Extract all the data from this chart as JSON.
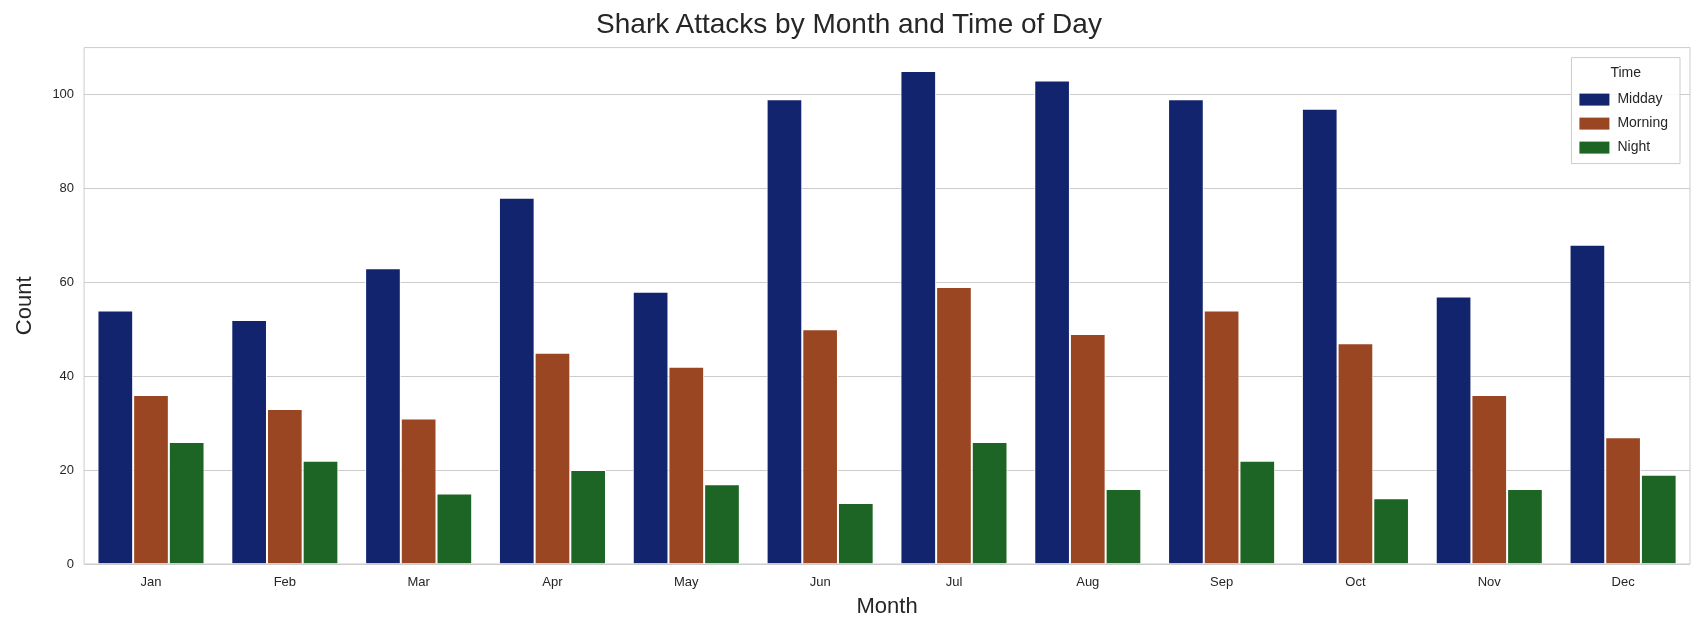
{
  "chart_data": {
    "type": "bar",
    "title": "Shark Attacks by Month and Time of Day",
    "xlabel": "Month",
    "ylabel": "Count",
    "legend_title": "Time",
    "legend": "top right",
    "grid": "y",
    "categories": [
      "Jan",
      "Feb",
      "Mar",
      "Apr",
      "May",
      "Jun",
      "Jul",
      "Aug",
      "Sep",
      "Oct",
      "Nov",
      "Dec"
    ],
    "ylim": [
      0,
      110
    ],
    "yticks": [
      0,
      20,
      40,
      60,
      80,
      100
    ],
    "series": [
      {
        "name": "Midday",
        "color": "#12246e",
        "values": [
          54,
          52,
          63,
          78,
          58,
          99,
          105,
          103,
          99,
          97,
          57,
          68
        ]
      },
      {
        "name": "Morning",
        "color": "#9b4623",
        "values": [
          36,
          33,
          31,
          45,
          42,
          50,
          59,
          49,
          54,
          47,
          36,
          27
        ]
      },
      {
        "name": "Night",
        "color": "#1d6524",
        "values": [
          26,
          22,
          15,
          20,
          17,
          13,
          26,
          16,
          22,
          14,
          16,
          19
        ]
      }
    ]
  }
}
